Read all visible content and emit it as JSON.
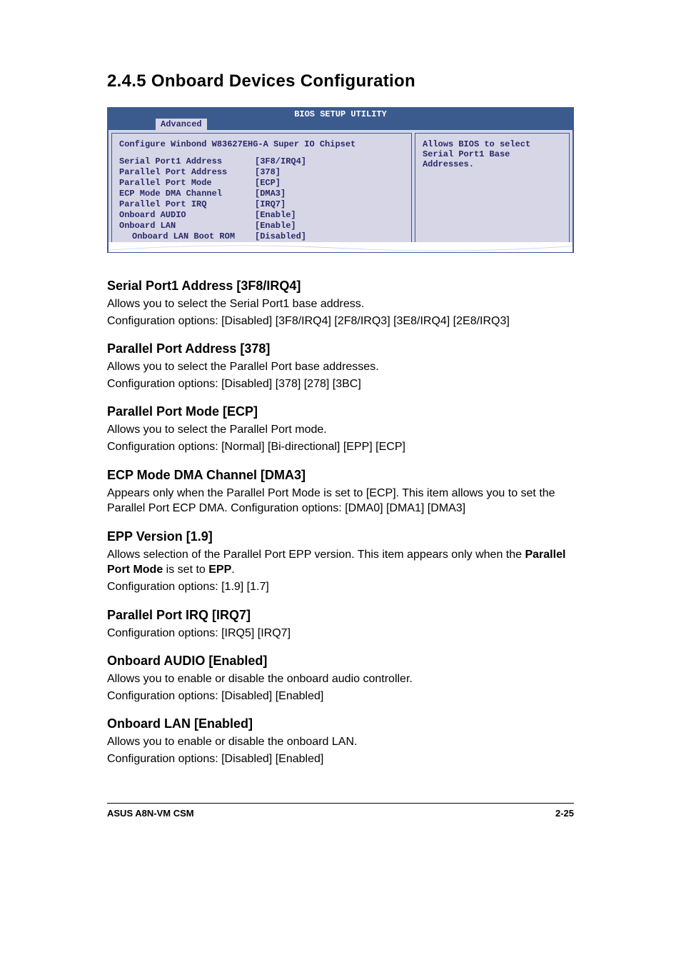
{
  "page": {
    "heading": "2.4.5   Onboard Devices Configuration",
    "footer_left": "ASUS A8N-VM CSM",
    "footer_right": "2-25"
  },
  "bios": {
    "title": "BIOS SETUP UTILITY",
    "tab": "Advanced",
    "left_heading": "Configure Winbond W83627EHG-A Super IO Chipset",
    "help_text": "Allows BIOS to select Serial Port1 Base Addresses.",
    "colors": {
      "border": "#3b5b8f",
      "bg": "#d6d6e7",
      "text": "#2a2a6a"
    },
    "rows": [
      {
        "label": "Serial Port1 Address",
        "value": "[3F8/IRQ4]",
        "indent": false
      },
      {
        "label": "Parallel Port Address",
        "value": "[378]",
        "indent": false
      },
      {
        "label": "Parallel Port Mode",
        "value": "[ECP]",
        "indent": false
      },
      {
        "label": "ECP Mode DMA Channel",
        "value": "[DMA3]",
        "indent": false
      },
      {
        "label": "Parallel Port IRQ",
        "value": "[IRQ7]",
        "indent": false
      },
      {
        "label": "Onboard AUDIO",
        "value": "[Enable]",
        "indent": false
      },
      {
        "label": "Onboard LAN",
        "value": "[Enable]",
        "indent": false
      },
      {
        "label": "Onboard LAN Boot ROM",
        "value": "[Disabled]",
        "indent": true
      }
    ]
  },
  "sections": [
    {
      "title": "Serial Port1 Address [3F8/IRQ4]",
      "paras": [
        "Allows you to select the Serial Port1 base address.",
        "Configuration options: [Disabled] [3F8/IRQ4] [2F8/IRQ3] [3E8/IRQ4] [2E8/IRQ3]"
      ]
    },
    {
      "title": "Parallel Port Address [378]",
      "paras": [
        "Allows you to select the Parallel Port base addresses.",
        "Configuration options: [Disabled] [378] [278] [3BC]"
      ]
    },
    {
      "title": "Parallel Port Mode [ECP]",
      "paras": [
        "Allows you to select the Parallel Port  mode.",
        "Configuration options: [Normal] [Bi-directional] [EPP] [ECP]"
      ]
    },
    {
      "title": "ECP Mode DMA Channel [DMA3]",
      "paras": [
        "Appears only when the Parallel Port Mode is set to [ECP]. This item allows you to set the Parallel Port ECP DMA. Configuration options: [DMA0] [DMA1] [DMA3]"
      ]
    },
    {
      "title": "EPP Version [1.9]",
      "rich": true,
      "para_before": "Allows selection of the Parallel Port EPP version. This item appears only when the ",
      "bold1": "Parallel Port Mode",
      "mid": " is set to ",
      "bold2": "EPP",
      "after": ".",
      "para2": "Configuration options: [1.9] [1.7]"
    },
    {
      "title": "Parallel Port IRQ [IRQ7]",
      "paras": [
        "Configuration options: [IRQ5] [IRQ7]"
      ]
    },
    {
      "title": "Onboard AUDIO [Enabled]",
      "paras": [
        "Allows you to enable or disable the onboard audio controller.",
        "Configuration options: [Disabled] [Enabled]"
      ]
    },
    {
      "title": "Onboard LAN [Enabled]",
      "paras": [
        "Allows you to enable or disable the onboard LAN.",
        "Configuration options: [Disabled] [Enabled]"
      ]
    }
  ]
}
